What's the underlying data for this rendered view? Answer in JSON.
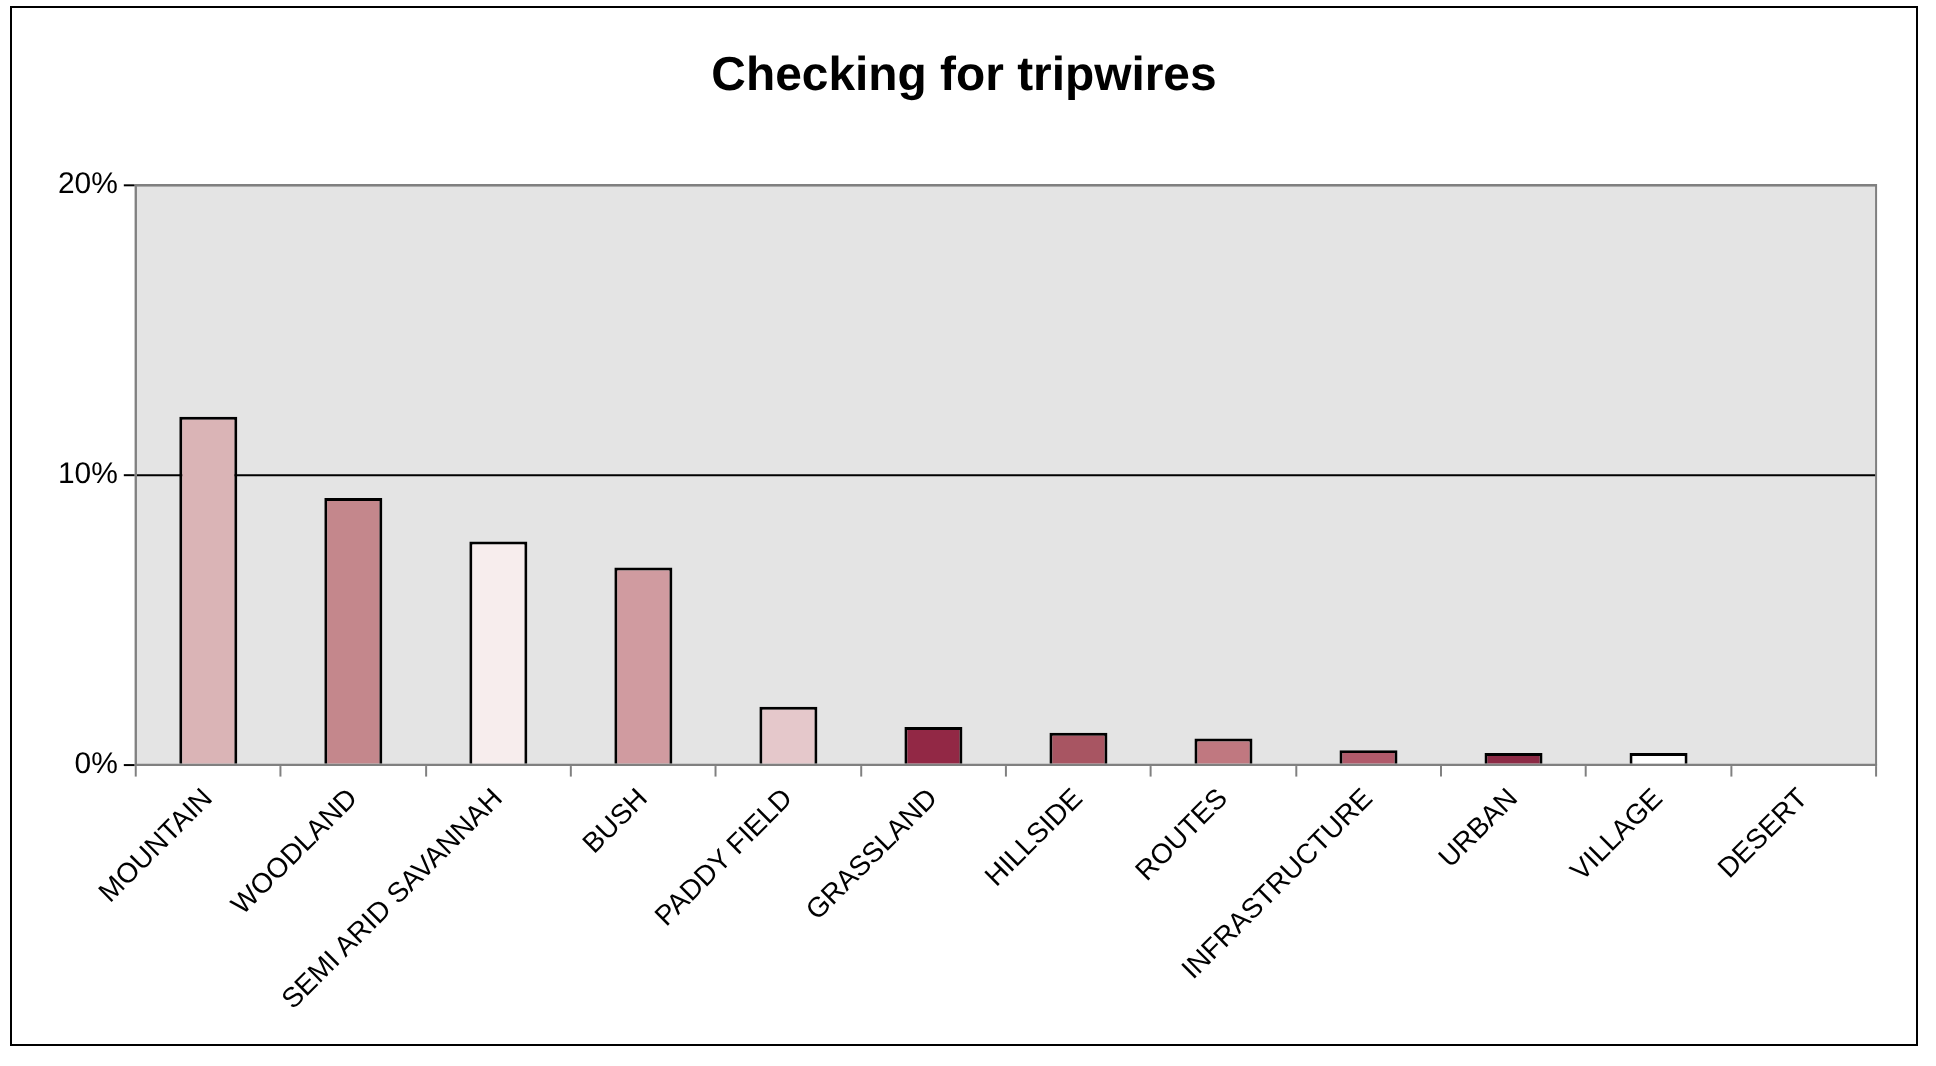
{
  "chart_data": {
    "type": "bar",
    "title": "Checking for tripwires",
    "categories": [
      "MOUNTAIN",
      "WOODLAND",
      "SEMI ARID SAVANNAH",
      "BUSH",
      "PADDY FIELD",
      "GRASSLAND",
      "HILLSIDE",
      "ROUTES",
      "INFRASTRUCTURE",
      "URBAN",
      "VILLAGE",
      "DESERT"
    ],
    "values": [
      12.0,
      9.2,
      7.7,
      6.8,
      2.0,
      1.3,
      1.1,
      0.9,
      0.5,
      0.4,
      0.4,
      0
    ],
    "colors": [
      "#dab4b6",
      "#c4878c",
      "#f7eded",
      "#d09ba0",
      "#e5c8cb",
      "#922845",
      "#a85562",
      "#c07880",
      "#b05a6a",
      "#8c2a45",
      "#ffffff",
      "#ffffff"
    ],
    "ylim": [
      0,
      20
    ],
    "yticks": [
      {
        "value": 0,
        "label": "0%"
      },
      {
        "value": 10,
        "label": "10%"
      },
      {
        "value": 20,
        "label": "20%"
      }
    ],
    "grid": "y",
    "legend": false
  }
}
